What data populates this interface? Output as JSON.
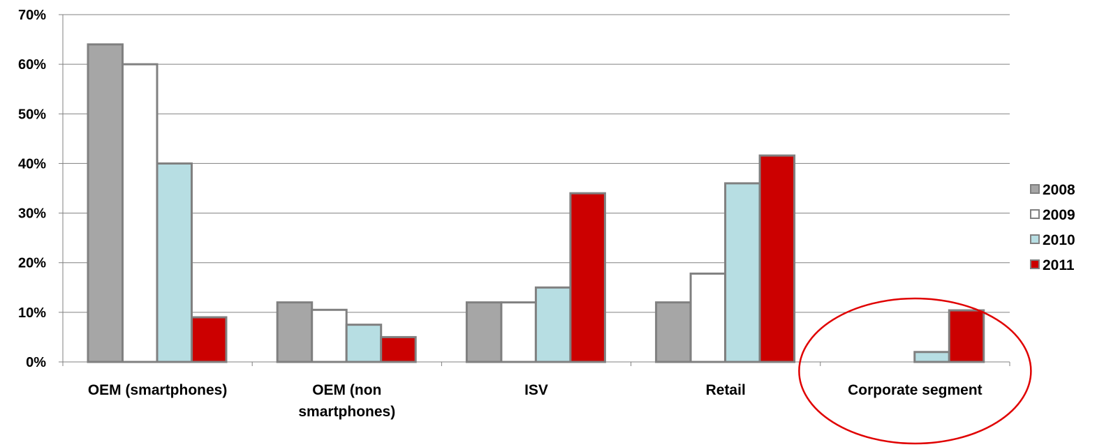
{
  "chart_data": {
    "type": "bar",
    "categories": [
      "OEM (smartphones)",
      "OEM (non smartphones)",
      "ISV",
      "Retail",
      "Corporate segment"
    ],
    "category_label_lines": [
      [
        "OEM (smartphones)"
      ],
      [
        "OEM (non",
        "smartphones)"
      ],
      [
        "ISV"
      ],
      [
        "Retail"
      ],
      [
        "Corporate segment"
      ]
    ],
    "series": [
      {
        "name": "2008",
        "values": [
          64,
          12,
          12,
          12,
          0
        ],
        "color": "#a6a6a6"
      },
      {
        "name": "2009",
        "values": [
          60,
          10.5,
          12,
          17.8,
          0
        ],
        "color": "#ffffff"
      },
      {
        "name": "2010",
        "values": [
          40,
          7.5,
          15,
          36,
          2
        ],
        "color": "#b7dee3"
      },
      {
        "name": "2011",
        "values": [
          9,
          5,
          34,
          41.6,
          10.4
        ],
        "color": "#cc0000"
      }
    ],
    "ylim": [
      0,
      70
    ],
    "y_ticks": [
      0,
      10,
      20,
      30,
      40,
      50,
      60,
      70
    ],
    "y_tick_labels": [
      "0%",
      "10%",
      "20%",
      "30%",
      "40%",
      "50%",
      "60%",
      "70%"
    ],
    "grid": true,
    "legend_position": "right",
    "bar_outline_color": "#808080",
    "annotation": {
      "type": "ellipse",
      "target_category": "Corporate segment",
      "color": "#e00000"
    },
    "title": "",
    "xlabel": "",
    "ylabel": ""
  }
}
